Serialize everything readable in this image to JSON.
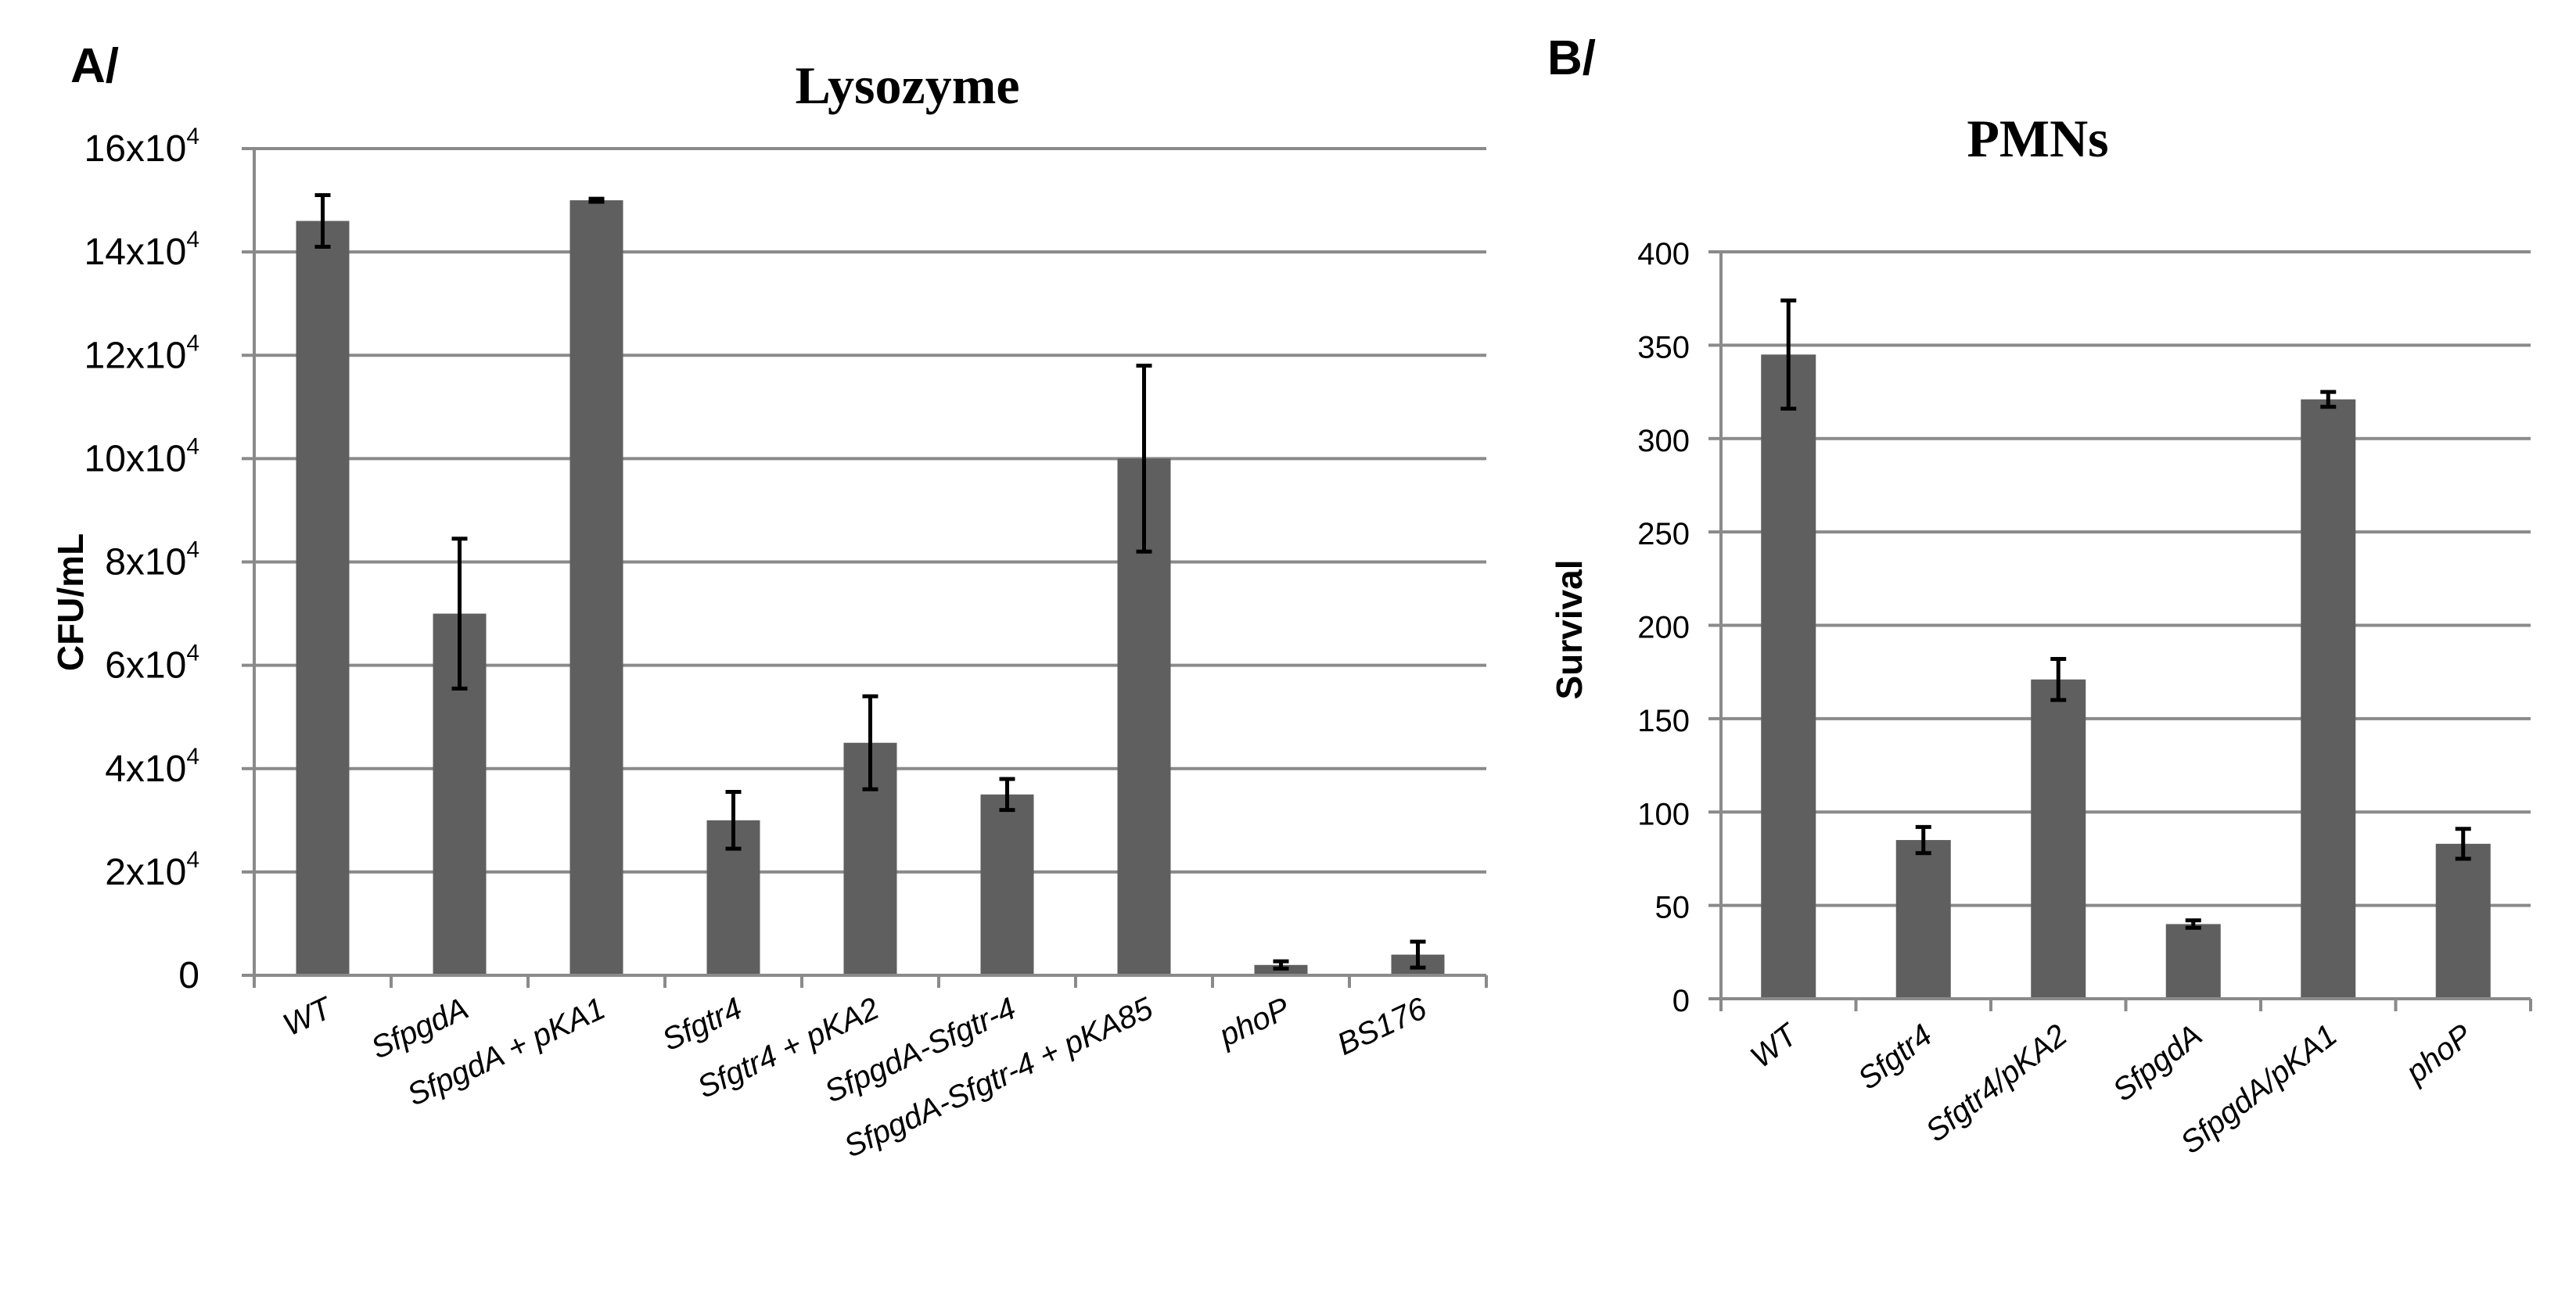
{
  "chart_data": [
    {
      "panel": "A/",
      "type": "bar",
      "title": "Lysozyme",
      "xlabel": "",
      "ylabel": "CFU/mL",
      "ylim": [
        0,
        160000
      ],
      "grid": true,
      "yticks": [
        {
          "value": 0,
          "mantissa": "0",
          "exp": ""
        },
        {
          "value": 20000,
          "mantissa": "2x10",
          "exp": "4"
        },
        {
          "value": 40000,
          "mantissa": "4x10",
          "exp": "4"
        },
        {
          "value": 60000,
          "mantissa": "6x10",
          "exp": "4"
        },
        {
          "value": 80000,
          "mantissa": "8x10",
          "exp": "4"
        },
        {
          "value": 100000,
          "mantissa": "10x10",
          "exp": "4"
        },
        {
          "value": 120000,
          "mantissa": "12x10",
          "exp": "4"
        },
        {
          "value": 140000,
          "mantissa": "14x10",
          "exp": "4"
        },
        {
          "value": 160000,
          "mantissa": "16x10",
          "exp": "4"
        }
      ],
      "categories": [
        "WT",
        "SfpgdA",
        "SfpgdA + pKA1",
        "Sfgtr4",
        "Sfgtr4 + pKA2",
        "SfpgdA-Sfgtr-4",
        "SfpgdA-Sfgtr-4 + pKA85",
        "phoP",
        "BS176"
      ],
      "values": [
        146000,
        70000,
        150000,
        30000,
        45000,
        35000,
        100000,
        2000,
        4000
      ],
      "errors": [
        5000,
        14500,
        300,
        5500,
        9000,
        3000,
        18000,
        700,
        2500
      ],
      "color": "#5f5f5f"
    },
    {
      "panel": "B/",
      "type": "bar",
      "title": "PMNs",
      "xlabel": "",
      "ylabel": "Survival",
      "ylim": [
        0,
        400
      ],
      "grid": true,
      "yticks": [
        {
          "value": 0,
          "mantissa": "0",
          "exp": ""
        },
        {
          "value": 50,
          "mantissa": "50",
          "exp": ""
        },
        {
          "value": 100,
          "mantissa": "100",
          "exp": ""
        },
        {
          "value": 150,
          "mantissa": "150",
          "exp": ""
        },
        {
          "value": 200,
          "mantissa": "200",
          "exp": ""
        },
        {
          "value": 250,
          "mantissa": "250",
          "exp": ""
        },
        {
          "value": 300,
          "mantissa": "300",
          "exp": ""
        },
        {
          "value": 350,
          "mantissa": "350",
          "exp": ""
        },
        {
          "value": 400,
          "mantissa": "400",
          "exp": ""
        }
      ],
      "categories": [
        "WT",
        "Sfgtr4",
        "Sfgtr4/pKA2",
        "SfpgdA",
        "SfpgdA/pKA1",
        "phoP"
      ],
      "values": [
        345,
        85,
        171,
        40,
        321,
        83
      ],
      "errors": [
        29,
        7,
        11,
        2,
        4,
        8
      ],
      "color": "#5f5f5f"
    }
  ]
}
